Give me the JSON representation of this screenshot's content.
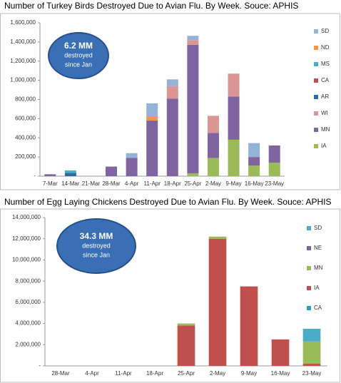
{
  "chart_data": [
    {
      "type": "bar",
      "stacked": true,
      "title": "Number of Turkey Birds Destroyed Due to Avian Flu.  By Week.  Souce: APHIS",
      "annotation": [
        "6.2 MM",
        "destroyed",
        "since Jan"
      ],
      "categories": [
        "7-Mar",
        "14-Mar",
        "21-Mar",
        "28-Mar",
        "4-Apr",
        "11-Apr",
        "18-Apr",
        "25-Apr",
        "2-May",
        "9-May",
        "16-May",
        "23-May"
      ],
      "series": [
        {
          "name": "IA",
          "color": "#9bbb59",
          "values": [
            0,
            0,
            0,
            0,
            0,
            0,
            0,
            30000,
            190000,
            380000,
            110000,
            140000
          ]
        },
        {
          "name": "MN",
          "color": "#8064a2",
          "values": [
            20000,
            0,
            0,
            100000,
            190000,
            580000,
            810000,
            1340000,
            260000,
            450000,
            90000,
            180000
          ]
        },
        {
          "name": "WI",
          "color": "#d99694",
          "values": [
            0,
            0,
            0,
            0,
            0,
            0,
            130000,
            50000,
            180000,
            240000,
            0,
            0
          ]
        },
        {
          "name": "AR",
          "color": "#2c6aa8",
          "values": [
            0,
            35000,
            0,
            0,
            0,
            0,
            0,
            0,
            0,
            0,
            0,
            0
          ]
        },
        {
          "name": "CA",
          "color": "#c0504d",
          "values": [
            0,
            0,
            0,
            0,
            0,
            0,
            0,
            0,
            0,
            0,
            0,
            0
          ]
        },
        {
          "name": "MS",
          "color": "#4bacc6",
          "values": [
            0,
            25000,
            0,
            0,
            0,
            0,
            0,
            0,
            0,
            0,
            0,
            0
          ]
        },
        {
          "name": "ND",
          "color": "#f79646",
          "values": [
            0,
            0,
            0,
            0,
            0,
            45000,
            0,
            0,
            0,
            0,
            0,
            0
          ]
        },
        {
          "name": "SD",
          "color": "#95b3d7",
          "values": [
            0,
            0,
            0,
            0,
            50000,
            135000,
            70000,
            45000,
            0,
            0,
            145000,
            0
          ]
        }
      ],
      "ylim": [
        0,
        1600000
      ],
      "yticks": [
        {
          "value": 0,
          "label": "-"
        },
        {
          "value": 200000,
          "label": "200,000"
        },
        {
          "value": 400000,
          "label": "400,000"
        },
        {
          "value": 600000,
          "label": "600,000"
        },
        {
          "value": 800000,
          "label": "800,000"
        },
        {
          "value": 1000000,
          "label": "1,000,000"
        },
        {
          "value": 1200000,
          "label": "1,200,000"
        },
        {
          "value": 1400000,
          "label": "1,400,000"
        },
        {
          "value": 1600000,
          "label": "1,600,000"
        }
      ]
    },
    {
      "type": "bar",
      "stacked": true,
      "title": "Number of Egg Laying Chickens Destroyed Due to Avian Flu.  By Week.  Souce: APHIS",
      "annotation": [
        "34.3 MM",
        "destroyed",
        "since Jan"
      ],
      "categories": [
        "28-Mar",
        "4-Apr",
        "11-Apr",
        "18-Apr",
        "25-Apr",
        "2-May",
        "9-May",
        "16-May",
        "23-May"
      ],
      "series": [
        {
          "name": "CA",
          "color": "#31a0c8",
          "values": [
            0,
            0,
            0,
            0,
            0,
            0,
            0,
            0,
            0
          ]
        },
        {
          "name": "IA",
          "color": "#c0504d",
          "values": [
            0,
            0,
            0,
            0,
            3800000,
            12000000,
            7500000,
            2500000,
            200000
          ]
        },
        {
          "name": "MN",
          "color": "#9bbb59",
          "values": [
            0,
            0,
            0,
            0,
            200000,
            200000,
            0,
            0,
            2100000
          ]
        },
        {
          "name": "NE",
          "color": "#8064a2",
          "values": [
            0,
            0,
            0,
            0,
            0,
            0,
            0,
            0,
            0
          ]
        },
        {
          "name": "SD",
          "color": "#4bacc6",
          "values": [
            0,
            0,
            0,
            0,
            0,
            0,
            0,
            0,
            1200000
          ]
        }
      ],
      "ylim": [
        0,
        14000000
      ],
      "yticks": [
        {
          "value": 0,
          "label": "-"
        },
        {
          "value": 2000000,
          "label": "2,000,000"
        },
        {
          "value": 4000000,
          "label": "4,000,000"
        },
        {
          "value": 6000000,
          "label": "6,000,000"
        },
        {
          "value": 8000000,
          "label": "8,000,000"
        },
        {
          "value": 10000000,
          "label": "10,000,000"
        },
        {
          "value": 12000000,
          "label": "12,000,000"
        },
        {
          "value": 14000000,
          "label": "14,000,000"
        }
      ]
    }
  ]
}
